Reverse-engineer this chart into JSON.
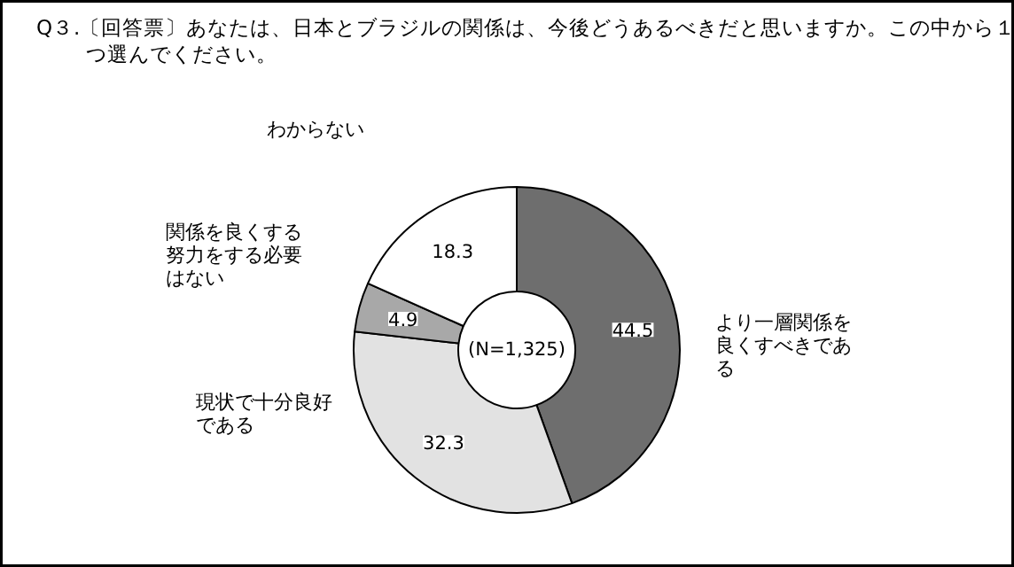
{
  "chart_data": {
    "type": "donut",
    "title": "Q３.〔回答票〕あなたは、日本とブラジルの関係は、今後どうあるべきだと思いますか。この中から１つ選んでください。",
    "categories": [
      "より一層関係を良くすべきである",
      "現状で十分良好である",
      "関係を良くする努力をする必要はない",
      "わからない"
    ],
    "values": [
      44.5,
      32.3,
      4.9,
      18.3
    ],
    "colors": [
      "#6e6e6e",
      "#e2e2e2",
      "#a8a8a8",
      "#ffffff"
    ],
    "data_labels": true,
    "annotations": [
      "(N=1,325)"
    ]
  }
}
